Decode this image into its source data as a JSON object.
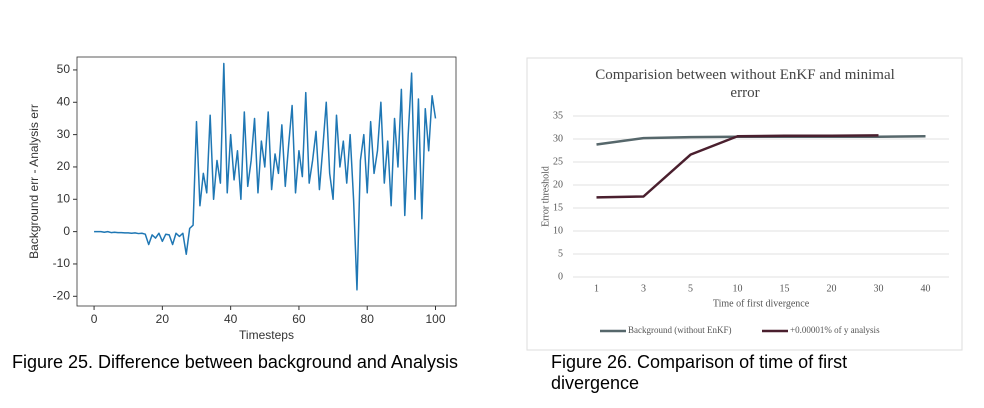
{
  "chart_data": [
    {
      "type": "line",
      "x_label": "Timesteps",
      "y_label": "Background err - Analysis err",
      "x": [
        0,
        1,
        2,
        3,
        4,
        5,
        6,
        7,
        8,
        9,
        10,
        11,
        12,
        13,
        14,
        15,
        16,
        17,
        18,
        19,
        20,
        21,
        22,
        23,
        24,
        25,
        26,
        27,
        28,
        29,
        30,
        31,
        32,
        33,
        34,
        35,
        36,
        37,
        38,
        39,
        40,
        41,
        42,
        43,
        44,
        45,
        46,
        47,
        48,
        49,
        50,
        51,
        52,
        53,
        54,
        55,
        56,
        57,
        58,
        59,
        60,
        61,
        62,
        63,
        64,
        65,
        66,
        67,
        68,
        69,
        70,
        71,
        72,
        73,
        74,
        75,
        76,
        77,
        78,
        79,
        80,
        81,
        82,
        83,
        84,
        85,
        86,
        87,
        88,
        89,
        90,
        91,
        92,
        93,
        94,
        95,
        96,
        97,
        98,
        99,
        100
      ],
      "series": [
        {
          "color": "#1f77b4",
          "values": [
            0,
            0,
            0,
            -0.2,
            0,
            -0.3,
            -0.2,
            -0.3,
            -0.3,
            -0.4,
            -0.4,
            -0.5,
            -0.4,
            -0.6,
            -0.5,
            -0.8,
            -4,
            -1,
            -2,
            -0.5,
            -3,
            -0.8,
            -1,
            -4,
            -0.5,
            -1.5,
            -0.5,
            -7,
            1,
            2,
            34,
            8,
            18,
            12,
            36,
            10,
            22,
            15,
            52,
            12,
            30,
            16,
            25,
            10,
            37,
            14,
            22,
            35,
            12,
            28,
            20,
            37,
            13,
            24,
            18,
            33,
            14,
            27,
            39,
            12,
            25,
            17,
            43,
            15,
            22,
            31,
            13,
            26,
            40,
            18,
            10,
            36,
            20,
            28,
            15,
            30,
            10,
            -18,
            22,
            30,
            12,
            34,
            18,
            25,
            40,
            15,
            28,
            8,
            35,
            20,
            44,
            5,
            30,
            49,
            10,
            41,
            4,
            38,
            25,
            42,
            35
          ]
        }
      ],
      "xlim": [
        -5,
        106
      ],
      "xticks": [
        0,
        20,
        40,
        60,
        80,
        100
      ],
      "ylim": [
        -23,
        54
      ],
      "yticks": [
        -20,
        -10,
        0,
        10,
        20,
        30,
        40,
        50
      ]
    },
    {
      "type": "line",
      "title": "Comparision between without EnKF and minimal error",
      "x_label": "Time of first divergence",
      "y_label": "Error threshold",
      "categories": [
        "1",
        "3",
        "5",
        "10",
        "15",
        "20",
        "30",
        "40"
      ],
      "series": [
        {
          "name": "Background (without EnKF)",
          "color": "#56676b",
          "values": [
            28.8,
            30.2,
            30.4,
            30.5,
            30.5,
            30.5,
            30.5,
            30.6
          ]
        },
        {
          "name": "+0.00001% of y analysis",
          "color": "#4a1f2e",
          "values": [
            17.3,
            17.5,
            26.6,
            30.6,
            30.7,
            30.7,
            30.8,
            null
          ]
        }
      ],
      "ylim": [
        0,
        35
      ],
      "yticks": [
        0,
        5,
        10,
        15,
        20,
        25,
        30,
        35
      ],
      "grid": true,
      "legend": "bottom"
    }
  ],
  "captions": [
    "Figure 25. Difference between background and Analysis",
    "Figure 26. Comparison of time of first divergence"
  ]
}
